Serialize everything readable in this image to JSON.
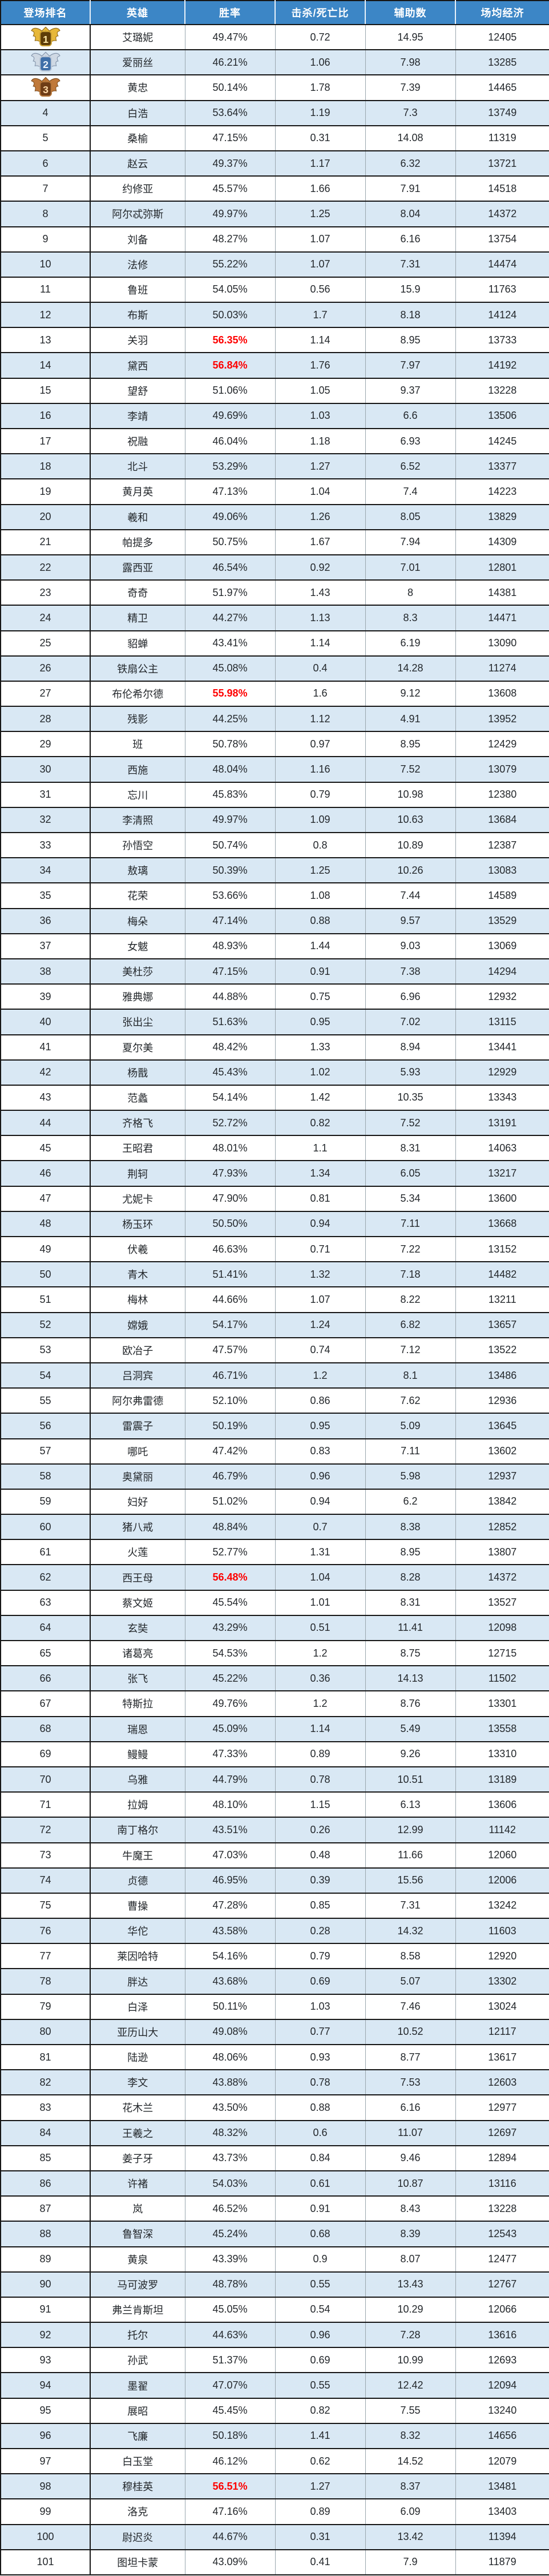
{
  "table": {
    "columns": [
      {
        "key": "rank",
        "label": "登场排名"
      },
      {
        "key": "hero",
        "label": "英雄"
      },
      {
        "key": "win",
        "label": "胜率"
      },
      {
        "key": "kd",
        "label": "击杀/死亡比"
      },
      {
        "key": "assist",
        "label": "辅助数"
      },
      {
        "key": "econ",
        "label": "场均经济"
      }
    ],
    "rows": [
      {
        "rank": 1,
        "medal": "gold",
        "hero": "艾璐妮",
        "win": "49.47%",
        "red": false,
        "kd": "0.72",
        "assist": "14.95",
        "econ": "12405"
      },
      {
        "rank": 2,
        "medal": "silver",
        "hero": "爱丽丝",
        "win": "46.21%",
        "red": false,
        "kd": "1.06",
        "assist": "7.98",
        "econ": "13285"
      },
      {
        "rank": 3,
        "medal": "bronze",
        "hero": "黄忠",
        "win": "50.14%",
        "red": false,
        "kd": "1.78",
        "assist": "7.39",
        "econ": "14465"
      },
      {
        "rank": 4,
        "hero": "白浩",
        "win": "53.64%",
        "red": false,
        "kd": "1.19",
        "assist": "7.3",
        "econ": "13749"
      },
      {
        "rank": 5,
        "hero": "桑榆",
        "win": "47.15%",
        "red": false,
        "kd": "0.31",
        "assist": "14.08",
        "econ": "11319"
      },
      {
        "rank": 6,
        "hero": "赵云",
        "win": "49.37%",
        "red": false,
        "kd": "1.17",
        "assist": "6.32",
        "econ": "13721"
      },
      {
        "rank": 7,
        "hero": "约修亚",
        "win": "45.57%",
        "red": false,
        "kd": "1.66",
        "assist": "7.91",
        "econ": "14518"
      },
      {
        "rank": 8,
        "hero": "阿尔忒弥斯",
        "win": "49.97%",
        "red": false,
        "kd": "1.25",
        "assist": "8.04",
        "econ": "14372"
      },
      {
        "rank": 9,
        "hero": "刘备",
        "win": "48.27%",
        "red": false,
        "kd": "1.07",
        "assist": "6.16",
        "econ": "13754"
      },
      {
        "rank": 10,
        "hero": "法修",
        "win": "55.22%",
        "red": false,
        "kd": "1.07",
        "assist": "7.31",
        "econ": "14474"
      },
      {
        "rank": 11,
        "hero": "鲁班",
        "win": "54.05%",
        "red": false,
        "kd": "0.56",
        "assist": "15.9",
        "econ": "11763"
      },
      {
        "rank": 12,
        "hero": "布斯",
        "win": "50.03%",
        "red": false,
        "kd": "1.7",
        "assist": "8.18",
        "econ": "14124"
      },
      {
        "rank": 13,
        "hero": "关羽",
        "win": "56.35%",
        "red": true,
        "kd": "1.14",
        "assist": "8.95",
        "econ": "13733"
      },
      {
        "rank": 14,
        "hero": "黛西",
        "win": "56.84%",
        "red": true,
        "kd": "1.76",
        "assist": "7.97",
        "econ": "14192"
      },
      {
        "rank": 15,
        "hero": "望舒",
        "win": "51.06%",
        "red": false,
        "kd": "1.05",
        "assist": "9.37",
        "econ": "13228"
      },
      {
        "rank": 16,
        "hero": "李靖",
        "win": "49.69%",
        "red": false,
        "kd": "1.03",
        "assist": "6.6",
        "econ": "13506"
      },
      {
        "rank": 17,
        "hero": "祝融",
        "win": "46.04%",
        "red": false,
        "kd": "1.18",
        "assist": "6.93",
        "econ": "14245"
      },
      {
        "rank": 18,
        "hero": "北斗",
        "win": "53.29%",
        "red": false,
        "kd": "1.27",
        "assist": "6.52",
        "econ": "13377"
      },
      {
        "rank": 19,
        "hero": "黄月英",
        "win": "47.13%",
        "red": false,
        "kd": "1.04",
        "assist": "7.4",
        "econ": "14223"
      },
      {
        "rank": 20,
        "hero": "羲和",
        "win": "49.06%",
        "red": false,
        "kd": "1.26",
        "assist": "8.05",
        "econ": "13829"
      },
      {
        "rank": 21,
        "hero": "帕提多",
        "win": "50.75%",
        "red": false,
        "kd": "1.67",
        "assist": "7.94",
        "econ": "14309"
      },
      {
        "rank": 22,
        "hero": "露西亚",
        "win": "46.54%",
        "red": false,
        "kd": "0.92",
        "assist": "7.01",
        "econ": "12801"
      },
      {
        "rank": 23,
        "hero": "奇奇",
        "win": "51.97%",
        "red": false,
        "kd": "1.43",
        "assist": "8",
        "econ": "14381"
      },
      {
        "rank": 24,
        "hero": "精卫",
        "win": "44.27%",
        "red": false,
        "kd": "1.13",
        "assist": "8.3",
        "econ": "14471"
      },
      {
        "rank": 25,
        "hero": "貂蝉",
        "win": "43.41%",
        "red": false,
        "kd": "1.14",
        "assist": "6.19",
        "econ": "13090"
      },
      {
        "rank": 26,
        "hero": "铁扇公主",
        "win": "45.08%",
        "red": false,
        "kd": "0.4",
        "assist": "14.28",
        "econ": "11274"
      },
      {
        "rank": 27,
        "hero": "布伦希尔德",
        "win": "55.98%",
        "red": true,
        "kd": "1.6",
        "assist": "9.12",
        "econ": "13608"
      },
      {
        "rank": 28,
        "hero": "残影",
        "win": "44.25%",
        "red": false,
        "kd": "1.12",
        "assist": "4.91",
        "econ": "13952"
      },
      {
        "rank": 29,
        "hero": "班",
        "win": "50.78%",
        "red": false,
        "kd": "0.97",
        "assist": "8.95",
        "econ": "12429"
      },
      {
        "rank": 30,
        "hero": "西施",
        "win": "48.04%",
        "red": false,
        "kd": "1.16",
        "assist": "7.52",
        "econ": "13079"
      },
      {
        "rank": 31,
        "hero": "忘川",
        "win": "45.83%",
        "red": false,
        "kd": "0.79",
        "assist": "10.98",
        "econ": "12380"
      },
      {
        "rank": 32,
        "hero": "李清照",
        "win": "49.97%",
        "red": false,
        "kd": "1.09",
        "assist": "10.63",
        "econ": "13684"
      },
      {
        "rank": 33,
        "hero": "孙悟空",
        "win": "50.74%",
        "red": false,
        "kd": "0.8",
        "assist": "10.89",
        "econ": "12387"
      },
      {
        "rank": 34,
        "hero": "敖璃",
        "win": "50.39%",
        "red": false,
        "kd": "1.25",
        "assist": "10.26",
        "econ": "13083"
      },
      {
        "rank": 35,
        "hero": "花荣",
        "win": "53.66%",
        "red": false,
        "kd": "1.08",
        "assist": "7.44",
        "econ": "14589"
      },
      {
        "rank": 36,
        "hero": "梅朵",
        "win": "47.14%",
        "red": false,
        "kd": "0.88",
        "assist": "9.57",
        "econ": "13529"
      },
      {
        "rank": 37,
        "hero": "女魃",
        "win": "48.93%",
        "red": false,
        "kd": "1.44",
        "assist": "9.03",
        "econ": "13069"
      },
      {
        "rank": 38,
        "hero": "美杜莎",
        "win": "47.15%",
        "red": false,
        "kd": "0.91",
        "assist": "7.38",
        "econ": "14294"
      },
      {
        "rank": 39,
        "hero": "雅典娜",
        "win": "44.88%",
        "red": false,
        "kd": "0.75",
        "assist": "6.96",
        "econ": "12932"
      },
      {
        "rank": 40,
        "hero": "张出尘",
        "win": "51.63%",
        "red": false,
        "kd": "0.95",
        "assist": "7.02",
        "econ": "13115"
      },
      {
        "rank": 41,
        "hero": "夏尔美",
        "win": "48.42%",
        "red": false,
        "kd": "1.33",
        "assist": "8.94",
        "econ": "13441"
      },
      {
        "rank": 42,
        "hero": "杨戬",
        "win": "45.43%",
        "red": false,
        "kd": "1.02",
        "assist": "5.93",
        "econ": "12929"
      },
      {
        "rank": 43,
        "hero": "范蠡",
        "win": "54.14%",
        "red": false,
        "kd": "1.42",
        "assist": "10.35",
        "econ": "13343"
      },
      {
        "rank": 44,
        "hero": "齐格飞",
        "win": "52.72%",
        "red": false,
        "kd": "0.82",
        "assist": "7.52",
        "econ": "13191"
      },
      {
        "rank": 45,
        "hero": "王昭君",
        "win": "48.01%",
        "red": false,
        "kd": "1.1",
        "assist": "8.31",
        "econ": "14063"
      },
      {
        "rank": 46,
        "hero": "荆轲",
        "win": "47.93%",
        "red": false,
        "kd": "1.34",
        "assist": "6.05",
        "econ": "13217"
      },
      {
        "rank": 47,
        "hero": "尤妮卡",
        "win": "47.90%",
        "red": false,
        "kd": "0.81",
        "assist": "5.34",
        "econ": "13600"
      },
      {
        "rank": 48,
        "hero": "杨玉环",
        "win": "50.50%",
        "red": false,
        "kd": "0.94",
        "assist": "7.11",
        "econ": "13668"
      },
      {
        "rank": 49,
        "hero": "伏羲",
        "win": "46.63%",
        "red": false,
        "kd": "0.71",
        "assist": "7.22",
        "econ": "13152"
      },
      {
        "rank": 50,
        "hero": "青木",
        "win": "51.41%",
        "red": false,
        "kd": "1.32",
        "assist": "7.18",
        "econ": "14482"
      },
      {
        "rank": 51,
        "hero": "梅林",
        "win": "44.66%",
        "red": false,
        "kd": "1.07",
        "assist": "8.22",
        "econ": "13211"
      },
      {
        "rank": 52,
        "hero": "嫦娥",
        "win": "54.17%",
        "red": false,
        "kd": "1.24",
        "assist": "6.82",
        "econ": "13657"
      },
      {
        "rank": 53,
        "hero": "欧冶子",
        "win": "47.57%",
        "red": false,
        "kd": "0.74",
        "assist": "7.12",
        "econ": "13522"
      },
      {
        "rank": 54,
        "hero": "吕洞宾",
        "win": "46.71%",
        "red": false,
        "kd": "1.2",
        "assist": "8.1",
        "econ": "13486"
      },
      {
        "rank": 55,
        "hero": "阿尔弗雷德",
        "win": "52.10%",
        "red": false,
        "kd": "0.86",
        "assist": "7.62",
        "econ": "12936"
      },
      {
        "rank": 56,
        "hero": "雷震子",
        "win": "50.19%",
        "red": false,
        "kd": "0.95",
        "assist": "5.09",
        "econ": "13645"
      },
      {
        "rank": 57,
        "hero": "哪吒",
        "win": "47.42%",
        "red": false,
        "kd": "0.83",
        "assist": "7.11",
        "econ": "13602"
      },
      {
        "rank": 58,
        "hero": "奥黛丽",
        "win": "46.79%",
        "red": false,
        "kd": "0.96",
        "assist": "5.98",
        "econ": "12937"
      },
      {
        "rank": 59,
        "hero": "妇好",
        "win": "51.02%",
        "red": false,
        "kd": "0.94",
        "assist": "6.2",
        "econ": "13842"
      },
      {
        "rank": 60,
        "hero": "猪八戒",
        "win": "48.84%",
        "red": false,
        "kd": "0.7",
        "assist": "8.38",
        "econ": "12852"
      },
      {
        "rank": 61,
        "hero": "火莲",
        "win": "52.77%",
        "red": false,
        "kd": "1.31",
        "assist": "8.95",
        "econ": "13807"
      },
      {
        "rank": 62,
        "hero": "西王母",
        "win": "56.48%",
        "red": true,
        "kd": "1.04",
        "assist": "8.28",
        "econ": "14372"
      },
      {
        "rank": 63,
        "hero": "蔡文姬",
        "win": "45.54%",
        "red": false,
        "kd": "1.01",
        "assist": "8.31",
        "econ": "13527"
      },
      {
        "rank": 64,
        "hero": "玄奘",
        "win": "43.29%",
        "red": false,
        "kd": "0.51",
        "assist": "11.41",
        "econ": "12098"
      },
      {
        "rank": 65,
        "hero": "诸葛亮",
        "win": "54.53%",
        "red": false,
        "kd": "1.2",
        "assist": "8.75",
        "econ": "12715"
      },
      {
        "rank": 66,
        "hero": "张飞",
        "win": "45.22%",
        "red": false,
        "kd": "0.36",
        "assist": "14.13",
        "econ": "11502"
      },
      {
        "rank": 67,
        "hero": "特斯拉",
        "win": "49.76%",
        "red": false,
        "kd": "1.2",
        "assist": "8.76",
        "econ": "13301"
      },
      {
        "rank": 68,
        "hero": "瑞恩",
        "win": "45.09%",
        "red": false,
        "kd": "1.14",
        "assist": "5.49",
        "econ": "13558"
      },
      {
        "rank": 69,
        "hero": "鳗鳗",
        "win": "47.33%",
        "red": false,
        "kd": "0.89",
        "assist": "9.26",
        "econ": "13310"
      },
      {
        "rank": 70,
        "hero": "乌雅",
        "win": "44.79%",
        "red": false,
        "kd": "0.78",
        "assist": "10.51",
        "econ": "13189"
      },
      {
        "rank": 71,
        "hero": "拉姆",
        "win": "48.10%",
        "red": false,
        "kd": "1.15",
        "assist": "6.13",
        "econ": "13606"
      },
      {
        "rank": 72,
        "hero": "南丁格尔",
        "win": "43.51%",
        "red": false,
        "kd": "0.26",
        "assist": "12.99",
        "econ": "11142"
      },
      {
        "rank": 73,
        "hero": "牛魔王",
        "win": "47.03%",
        "red": false,
        "kd": "0.48",
        "assist": "11.66",
        "econ": "12060"
      },
      {
        "rank": 74,
        "hero": "贞德",
        "win": "46.95%",
        "red": false,
        "kd": "0.39",
        "assist": "15.56",
        "econ": "12006"
      },
      {
        "rank": 75,
        "hero": "曹操",
        "win": "47.28%",
        "red": false,
        "kd": "0.85",
        "assist": "7.31",
        "econ": "13242"
      },
      {
        "rank": 76,
        "hero": "华佗",
        "win": "43.58%",
        "red": false,
        "kd": "0.28",
        "assist": "14.32",
        "econ": "11603"
      },
      {
        "rank": 77,
        "hero": "莱因哈特",
        "win": "54.16%",
        "red": false,
        "kd": "0.79",
        "assist": "8.58",
        "econ": "12920"
      },
      {
        "rank": 78,
        "hero": "胖达",
        "win": "43.68%",
        "red": false,
        "kd": "0.69",
        "assist": "5.07",
        "econ": "13302"
      },
      {
        "rank": 79,
        "hero": "白泽",
        "win": "50.11%",
        "red": false,
        "kd": "1.03",
        "assist": "7.46",
        "econ": "13024"
      },
      {
        "rank": 80,
        "hero": "亚历山大",
        "win": "49.08%",
        "red": false,
        "kd": "0.77",
        "assist": "10.52",
        "econ": "12117"
      },
      {
        "rank": 81,
        "hero": "陆逊",
        "win": "48.06%",
        "red": false,
        "kd": "0.93",
        "assist": "8.77",
        "econ": "13617"
      },
      {
        "rank": 82,
        "hero": "李文",
        "win": "43.88%",
        "red": false,
        "kd": "0.78",
        "assist": "7.53",
        "econ": "12603"
      },
      {
        "rank": 83,
        "hero": "花木兰",
        "win": "43.50%",
        "red": false,
        "kd": "0.88",
        "assist": "6.16",
        "econ": "12977"
      },
      {
        "rank": 84,
        "hero": "王羲之",
        "win": "48.32%",
        "red": false,
        "kd": "0.6",
        "assist": "11.07",
        "econ": "12697"
      },
      {
        "rank": 85,
        "hero": "姜子牙",
        "win": "43.73%",
        "red": false,
        "kd": "0.84",
        "assist": "9.46",
        "econ": "12894"
      },
      {
        "rank": 86,
        "hero": "许褚",
        "win": "54.03%",
        "red": false,
        "kd": "0.61",
        "assist": "10.87",
        "econ": "13116"
      },
      {
        "rank": 87,
        "hero": "岚",
        "win": "46.52%",
        "red": false,
        "kd": "0.91",
        "assist": "8.43",
        "econ": "13228"
      },
      {
        "rank": 88,
        "hero": "鲁智深",
        "win": "45.24%",
        "red": false,
        "kd": "0.68",
        "assist": "8.39",
        "econ": "12543"
      },
      {
        "rank": 89,
        "hero": "黄泉",
        "win": "43.39%",
        "red": false,
        "kd": "0.9",
        "assist": "8.07",
        "econ": "12477"
      },
      {
        "rank": 90,
        "hero": "马可波罗",
        "win": "48.78%",
        "red": false,
        "kd": "0.55",
        "assist": "13.43",
        "econ": "12767"
      },
      {
        "rank": 91,
        "hero": "弗兰肯斯坦",
        "win": "45.05%",
        "red": false,
        "kd": "0.54",
        "assist": "10.29",
        "econ": "12066"
      },
      {
        "rank": 92,
        "hero": "托尔",
        "win": "44.63%",
        "red": false,
        "kd": "0.96",
        "assist": "7.28",
        "econ": "13616"
      },
      {
        "rank": 93,
        "hero": "孙武",
        "win": "51.37%",
        "red": false,
        "kd": "0.69",
        "assist": "10.99",
        "econ": "12693"
      },
      {
        "rank": 94,
        "hero": "墨翟",
        "win": "47.07%",
        "red": false,
        "kd": "0.55",
        "assist": "12.42",
        "econ": "12094"
      },
      {
        "rank": 95,
        "hero": "展昭",
        "win": "45.45%",
        "red": false,
        "kd": "0.82",
        "assist": "7.55",
        "econ": "13240"
      },
      {
        "rank": 96,
        "hero": "飞廉",
        "win": "50.18%",
        "red": false,
        "kd": "1.41",
        "assist": "8.32",
        "econ": "14656"
      },
      {
        "rank": 97,
        "hero": "白玉堂",
        "win": "46.12%",
        "red": false,
        "kd": "0.62",
        "assist": "14.52",
        "econ": "12079"
      },
      {
        "rank": 98,
        "hero": "穆桂英",
        "win": "56.51%",
        "red": true,
        "kd": "1.27",
        "assist": "8.37",
        "econ": "13481"
      },
      {
        "rank": 99,
        "hero": "洛克",
        "win": "47.16%",
        "red": false,
        "kd": "0.89",
        "assist": "6.09",
        "econ": "13403"
      },
      {
        "rank": 100,
        "hero": "尉迟炎",
        "win": "44.67%",
        "red": false,
        "kd": "0.31",
        "assist": "13.42",
        "econ": "11394"
      },
      {
        "rank": 101,
        "hero": "图坦卡蒙",
        "win": "43.09%",
        "red": false,
        "kd": "0.41",
        "assist": "7.9",
        "econ": "11879"
      }
    ]
  },
  "colors": {
    "header_bg": "#3c86c6",
    "band_row_bg": "#d9e8f4",
    "highlight_red": "#fe0000",
    "border_dark": "#161616",
    "border_light": "#9aa6ae"
  },
  "medals": {
    "gold": {
      "wing": "#e7b83a",
      "outline": "#8a6212",
      "badge": "#5d3d08",
      "rim": "#caa133",
      "num": "#ffe9a8"
    },
    "silver": {
      "wing": "#cfd9e4",
      "outline": "#7e8fa6",
      "badge": "#3f6fa8",
      "rim": "#b9c6d6",
      "num": "#eef4fb"
    },
    "bronze": {
      "wing": "#c0793a",
      "outline": "#7a4a1c",
      "badge": "#6e3c16",
      "rim": "#b37438",
      "num": "#ffd9a8"
    }
  }
}
